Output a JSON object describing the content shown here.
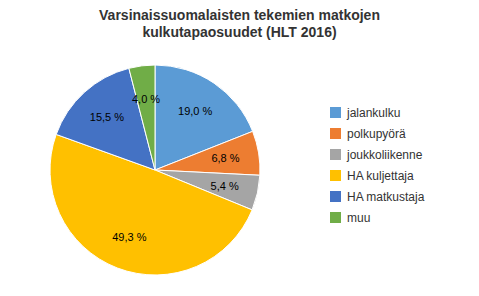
{
  "chart_data": {
    "type": "pie",
    "title": "Varsinaissuomalaisten tekemien matkojen\nkulkutapaosuudet (HLT 2016)",
    "categories": [
      "jalankulku",
      "polkupyörä",
      "joukkoliikenne",
      "HA kuljettaja",
      "HA matkustaja",
      "muu"
    ],
    "values": [
      19.0,
      6.8,
      5.4,
      49.3,
      15.5,
      4.0
    ],
    "value_labels": [
      "19,0 %",
      "6,8 %",
      "5,4 %",
      "49,3 %",
      "15,5 %",
      "4,0 %"
    ],
    "colors": [
      "#5b9bd5",
      "#ed7d31",
      "#a5a5a5",
      "#ffc000",
      "#4472c4",
      "#70ad47"
    ],
    "data_labels": true,
    "legend": "right"
  }
}
